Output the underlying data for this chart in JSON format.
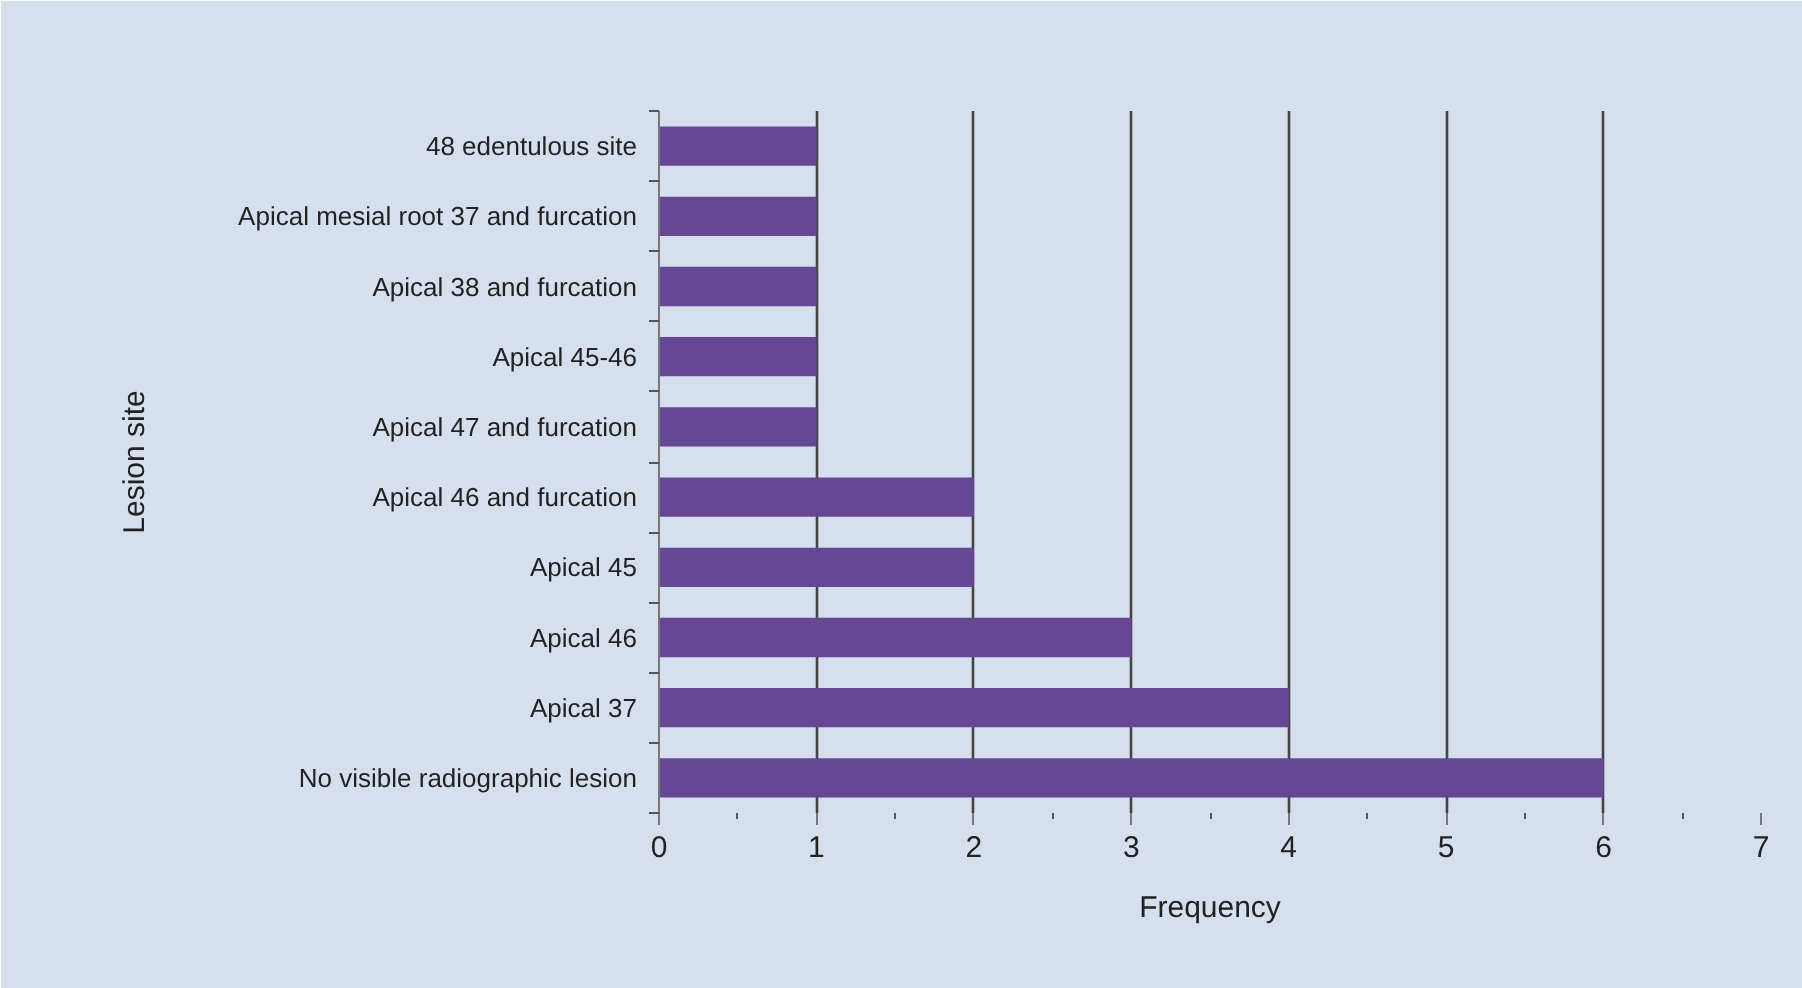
{
  "chart_data": {
    "type": "bar",
    "orientation": "horizontal",
    "xlabel": "Frequency",
    "ylabel": "Lesion site",
    "categories": [
      "48 edentulous site",
      "Apical mesial root 37 and furcation",
      "Apical 38 and furcation",
      "Apical 45-46",
      "Apical 47 and furcation",
      "Apical 46 and furcation",
      "Apical 45",
      "Apical 46",
      "Apical 37",
      "No visible radiographic lesion"
    ],
    "values": [
      1,
      1,
      1,
      1,
      1,
      2,
      2,
      3,
      4,
      6
    ],
    "color": "#654793",
    "xlim": [
      0,
      7
    ],
    "xticks": [
      0,
      1,
      2,
      3,
      4,
      5,
      6,
      7
    ],
    "grid": "x"
  }
}
